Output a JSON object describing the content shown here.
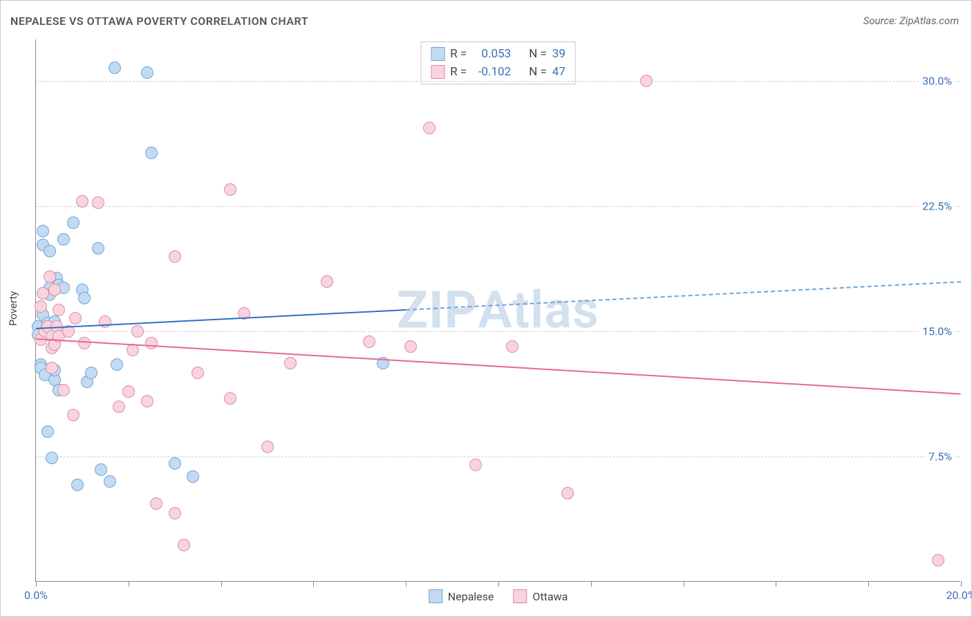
{
  "title": "NEPALESE VS OTTAWA POVERTY CORRELATION CHART",
  "source_label": "Source: ZipAtlas.com",
  "ylabel": "Poverty",
  "watermark": "ZIPAtlas",
  "chart": {
    "type": "scatter",
    "background_color": "#ffffff",
    "grid_color": "#d0d0d0",
    "axis_color": "#888888",
    "tick_label_color": "#3b6fb5",
    "xlim": [
      0,
      20
    ],
    "ylim": [
      0,
      32.5
    ],
    "xticks": [
      0,
      2,
      4,
      6,
      8,
      10,
      12,
      14,
      16,
      18,
      20
    ],
    "xtick_labels": {
      "0": "0.0%",
      "20": "20.0%"
    },
    "yticks": [
      7.5,
      15.0,
      22.5,
      30.0
    ],
    "ytick_labels": [
      "7.5%",
      "15.0%",
      "22.5%",
      "30.0%"
    ],
    "marker_radius": 9,
    "marker_border_width": 1.5,
    "trend_line_width": 2.5,
    "series": [
      {
        "name": "Nepalese",
        "fill_color": "#c3dbf2",
        "stroke_color": "#6fa3d8",
        "trend_solid_color": "#2f6fc2",
        "trend_dashed_color": "#6fa3d8",
        "stats": {
          "R": "0.053",
          "N": "39"
        },
        "trend": {
          "x1": 0,
          "y1": 15.2,
          "x2": 20,
          "y2": 18.0,
          "solid_until_x": 8.0
        },
        "points": [
          [
            0.05,
            15.3
          ],
          [
            0.05,
            14.8
          ],
          [
            0.1,
            13.0
          ],
          [
            0.1,
            12.8
          ],
          [
            0.15,
            21.0
          ],
          [
            0.15,
            20.2
          ],
          [
            0.15,
            16.0
          ],
          [
            0.2,
            12.4
          ],
          [
            0.25,
            15.5
          ],
          [
            0.25,
            9.0
          ],
          [
            0.3,
            17.6
          ],
          [
            0.3,
            17.2
          ],
          [
            0.3,
            19.8
          ],
          [
            0.35,
            7.4
          ],
          [
            0.35,
            14.9
          ],
          [
            0.4,
            12.1
          ],
          [
            0.4,
            12.7
          ],
          [
            0.4,
            15.6
          ],
          [
            0.45,
            18.2
          ],
          [
            0.5,
            17.8
          ],
          [
            0.5,
            11.5
          ],
          [
            0.6,
            17.6
          ],
          [
            0.6,
            20.5
          ],
          [
            0.8,
            21.5
          ],
          [
            0.9,
            5.8
          ],
          [
            1.0,
            17.5
          ],
          [
            1.05,
            17.0
          ],
          [
            1.1,
            12.0
          ],
          [
            1.2,
            12.5
          ],
          [
            1.35,
            20.0
          ],
          [
            1.4,
            6.7
          ],
          [
            1.6,
            6.0
          ],
          [
            1.7,
            30.8
          ],
          [
            1.75,
            13.0
          ],
          [
            2.4,
            30.5
          ],
          [
            2.5,
            25.7
          ],
          [
            3.0,
            7.1
          ],
          [
            3.4,
            6.3
          ],
          [
            7.5,
            13.1
          ]
        ]
      },
      {
        "name": "Ottawa",
        "fill_color": "#f7d4de",
        "stroke_color": "#e08aa3",
        "trend_solid_color": "#e56a8b",
        "stats": {
          "R": "-0.102",
          "N": "47"
        },
        "trend": {
          "x1": 0,
          "y1": 14.6,
          "x2": 20,
          "y2": 11.3,
          "solid_until_x": 20
        },
        "points": [
          [
            0.1,
            14.5
          ],
          [
            0.1,
            16.5
          ],
          [
            0.15,
            17.3
          ],
          [
            0.2,
            15.0
          ],
          [
            0.25,
            15.3
          ],
          [
            0.3,
            18.3
          ],
          [
            0.35,
            14.0
          ],
          [
            0.35,
            14.7
          ],
          [
            0.35,
            12.8
          ],
          [
            0.4,
            17.5
          ],
          [
            0.4,
            14.2
          ],
          [
            0.45,
            15.3
          ],
          [
            0.5,
            16.3
          ],
          [
            0.5,
            14.7
          ],
          [
            0.6,
            11.5
          ],
          [
            0.7,
            15.0
          ],
          [
            0.8,
            10.0
          ],
          [
            0.85,
            15.8
          ],
          [
            1.0,
            22.8
          ],
          [
            1.05,
            14.3
          ],
          [
            1.35,
            22.7
          ],
          [
            1.5,
            15.6
          ],
          [
            1.8,
            10.5
          ],
          [
            2.0,
            11.4
          ],
          [
            2.1,
            13.9
          ],
          [
            2.2,
            15.0
          ],
          [
            2.4,
            10.8
          ],
          [
            2.5,
            14.3
          ],
          [
            2.6,
            4.7
          ],
          [
            3.0,
            19.5
          ],
          [
            3.0,
            4.1
          ],
          [
            3.2,
            2.2
          ],
          [
            3.5,
            12.5
          ],
          [
            4.2,
            11.0
          ],
          [
            4.2,
            23.5
          ],
          [
            4.5,
            16.1
          ],
          [
            5.0,
            8.1
          ],
          [
            5.5,
            13.1
          ],
          [
            6.3,
            18.0
          ],
          [
            7.2,
            14.4
          ],
          [
            8.1,
            14.1
          ],
          [
            8.5,
            27.2
          ],
          [
            9.5,
            7.0
          ],
          [
            10.3,
            14.1
          ],
          [
            11.5,
            5.3
          ],
          [
            13.2,
            30.0
          ],
          [
            19.5,
            1.3
          ]
        ]
      }
    ]
  },
  "stats_box": {
    "rows": [
      {
        "swatch_fill": "#c3dbf2",
        "swatch_stroke": "#6fa3d8",
        "r_label": "R =",
        "r_val": "0.053",
        "n_label": "N =",
        "n_val": "39"
      },
      {
        "swatch_fill": "#f7d4de",
        "swatch_stroke": "#e08aa3",
        "r_label": "R =",
        "r_val": "-0.102",
        "n_label": "N =",
        "n_val": "47"
      }
    ]
  },
  "bottom_legend": [
    {
      "fill": "#c3dbf2",
      "stroke": "#6fa3d8",
      "label": "Nepalese"
    },
    {
      "fill": "#f7d4de",
      "stroke": "#e08aa3",
      "label": "Ottawa"
    }
  ]
}
